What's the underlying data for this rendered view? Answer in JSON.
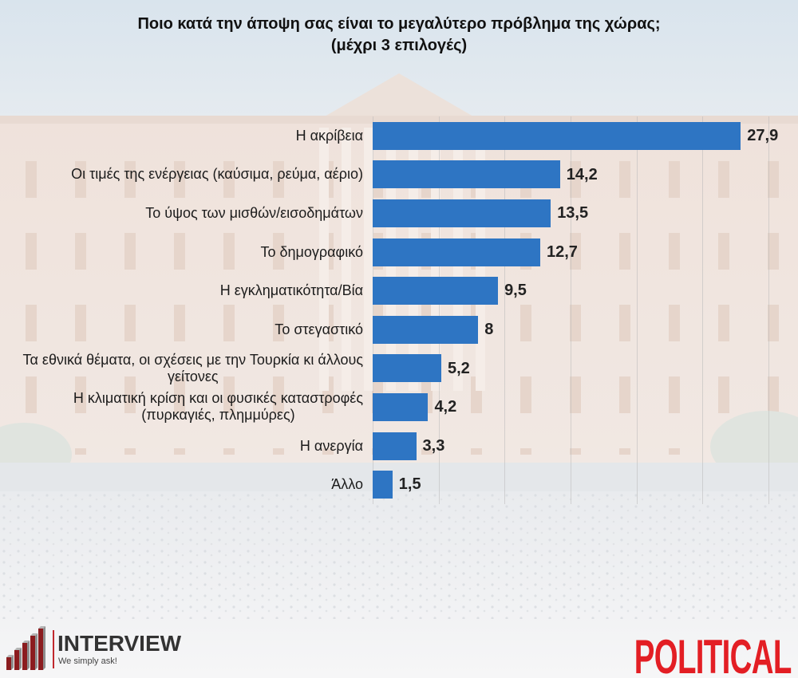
{
  "chart_data": {
    "type": "bar",
    "orientation": "horizontal",
    "title": "Ποιο κατά την άποψη σας είναι το μεγαλύτερο πρόβλημα της χώρας;",
    "subtitle": "(μέχρι 3 επιλογές)",
    "categories": [
      "Η ακρίβεια",
      "Οι τιμές της ενέργειας (καύσιμα, ρεύμα, αέριο)",
      "Το ύψος των μισθών/εισοδημάτων",
      "Το δημογραφικό",
      "Η εγκληματικότητα/Βία",
      "Το στεγαστικό",
      "Τα εθνικά θέματα, οι σχέσεις με την Τουρκία κι άλλους\nγείτονες",
      "Η κλιματική κρίση και οι φυσικές καταστροφές\n(πυρκαγιές, πλημμύρες)",
      "Η ανεργία",
      "Άλλο"
    ],
    "values": [
      27.9,
      14.2,
      13.5,
      12.7,
      9.5,
      8,
      5.2,
      4.2,
      3.3,
      1.5
    ],
    "data_labels": [
      "27,9",
      "14,2",
      "13,5",
      "12,7",
      "9,5",
      "8",
      "5,2",
      "4,2",
      "3,3",
      "1,5"
    ],
    "xlim": [
      0,
      30
    ],
    "grid": true,
    "bar_color": "#2E75C3"
  },
  "branding": {
    "left_logo": {
      "name": "INTERVIEW",
      "tagline": "We simply ask!",
      "icon": "ascending-bars-icon",
      "accent_color": "#8B1C1F"
    },
    "right_logo": {
      "name": "POLITICAL",
      "color": "#E31E24"
    }
  }
}
